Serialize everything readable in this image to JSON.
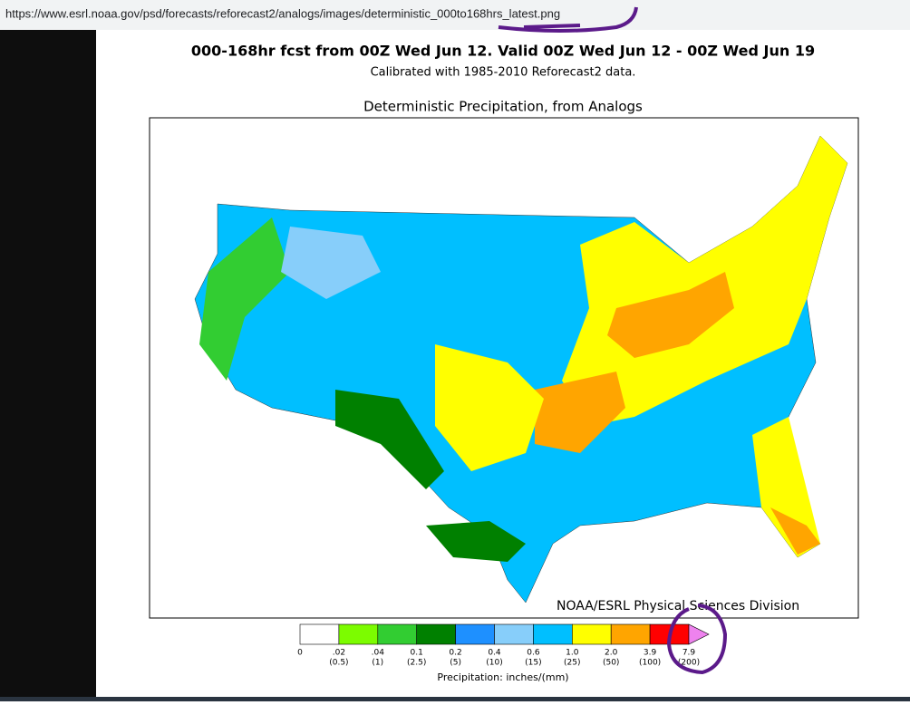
{
  "browser": {
    "url": "https://www.esrl.noaa.gov/psd/forecasts/reforecast2/analogs/images/deterministic_000to168hrs_latest.png"
  },
  "image": {
    "title": "000-168hr fcst from 00Z Wed Jun 12.  Valid 00Z Wed Jun 12 - 00Z Wed Jun 19",
    "subtitle": "Calibrated with 1985-2010 Reforecast2 data.",
    "map_title": "Deterministic Precipitation, from Analogs",
    "credit": "NOAA/ESRL Physical Sciences Division",
    "colorbar": {
      "colors": [
        "#ffffff",
        "#7cfc00",
        "#32cd32",
        "#008000",
        "#1e90ff",
        "#87cefa",
        "#00bfff",
        "#ffff00",
        "#ffa500",
        "#ff0000"
      ],
      "extend_color": "#ee82ee",
      "ticks": [
        {
          "in": "0"
        },
        {
          "in": ".02",
          "mm": "(0.5)"
        },
        {
          "in": ".04",
          "mm": "(1)"
        },
        {
          "in": "0.1",
          "mm": "(2.5)"
        },
        {
          "in": "0.2",
          "mm": "(5)"
        },
        {
          "in": "0.4",
          "mm": "(10)"
        },
        {
          "in": "0.6",
          "mm": "(15)"
        },
        {
          "in": "1.0",
          "mm": "(25)"
        },
        {
          "in": "2.0",
          "mm": "(50)"
        },
        {
          "in": "3.9",
          "mm": "(100)"
        },
        {
          "in": "7.9",
          "mm": "(200)"
        }
      ],
      "label": "Precipitation: inches/(mm)"
    }
  }
}
